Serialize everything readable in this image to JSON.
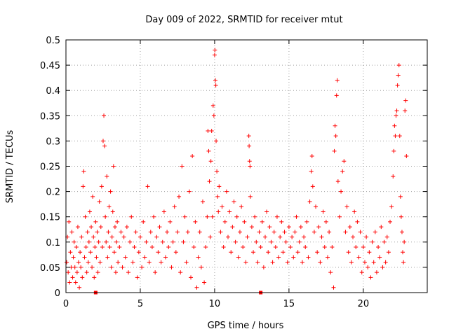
{
  "chart_data": {
    "type": "scatter",
    "title": "Day 009 of 2022, SRMTID for receiver mtut",
    "xlabel": "GPS time / hours",
    "ylabel": "SRMTID / TECUs",
    "xlim": [
      0,
      24.3
    ],
    "ylim": [
      0,
      0.5
    ],
    "xticks": [
      0,
      5,
      10,
      15,
      20
    ],
    "xtick_labels": [
      "0",
      "5",
      "10",
      "15",
      "20"
    ],
    "yticks": [
      0,
      0.05,
      0.1,
      0.15,
      0.2,
      0.25,
      0.3,
      0.35,
      0.4,
      0.45,
      0.5
    ],
    "ytick_labels": [
      "0",
      "0.05",
      "0.1",
      "0.15",
      "0.2",
      "0.25",
      "0.3",
      "0.35",
      "0.4",
      "0.45",
      "0.5"
    ],
    "grid": true,
    "marker": "plus",
    "color": "#ff0000",
    "series": [
      {
        "name": "SRMTID",
        "points": [
          [
            0.05,
            0.06
          ],
          [
            0.1,
            0.11
          ],
          [
            0.15,
            0.04
          ],
          [
            0.2,
            0.14
          ],
          [
            0.25,
            0.02
          ],
          [
            0.3,
            0.08
          ],
          [
            0.35,
            0.05
          ],
          [
            0.4,
            0.12
          ],
          [
            0.45,
            0.03
          ],
          [
            0.5,
            0.07
          ],
          [
            0.55,
            0.1
          ],
          [
            0.6,
            0.05
          ],
          [
            0.65,
            0.02
          ],
          [
            0.7,
            0.09
          ],
          [
            0.75,
            0.04
          ],
          [
            0.8,
            0.13
          ],
          [
            0.85,
            0.06
          ],
          [
            0.9,
            0.01
          ],
          [
            0.95,
            0.08
          ],
          [
            1.0,
            0.05
          ],
          [
            1.05,
            0.11
          ],
          [
            1.1,
            0.03
          ],
          [
            1.15,
            0.21
          ],
          [
            1.2,
            0.24
          ],
          [
            1.25,
            0.07
          ],
          [
            1.3,
            0.15
          ],
          [
            1.35,
            0.09
          ],
          [
            1.4,
            0.04
          ],
          [
            1.45,
            0.12
          ],
          [
            1.5,
            0.06
          ],
          [
            1.55,
            0.1
          ],
          [
            1.6,
            0.16
          ],
          [
            1.65,
            0.08
          ],
          [
            1.7,
            0.13
          ],
          [
            1.75,
            0.05
          ],
          [
            1.8,
            0.19
          ],
          [
            1.85,
            0.11
          ],
          [
            1.9,
            0.03
          ],
          [
            1.95,
            0.09
          ],
          [
            2.0,
            0.14
          ],
          [
            2.05,
            0.07
          ],
          [
            2.1,
            0.12
          ],
          [
            2.15,
            0.04
          ],
          [
            2.2,
            0.1
          ],
          [
            2.25,
            0.18
          ],
          [
            2.3,
            0.06
          ],
          [
            2.35,
            0.13
          ],
          [
            2.4,
            0.21
          ],
          [
            2.45,
            0.09
          ],
          [
            2.5,
            0.3
          ],
          [
            2.55,
            0.35
          ],
          [
            2.6,
            0.29
          ],
          [
            2.65,
            0.15
          ],
          [
            2.7,
            0.1
          ],
          [
            2.75,
            0.23
          ],
          [
            2.8,
            0.07
          ],
          [
            2.85,
            0.12
          ],
          [
            2.9,
            0.17
          ],
          [
            2.95,
            0.09
          ],
          [
            3.0,
            0.2
          ],
          [
            3.05,
            0.05
          ],
          [
            3.1,
            0.11
          ],
          [
            3.15,
            0.16
          ],
          [
            3.2,
            0.25
          ],
          [
            3.25,
            0.08
          ],
          [
            3.3,
            0.13
          ],
          [
            3.35,
            0.04
          ],
          [
            3.4,
            0.1
          ],
          [
            3.45,
            0.14
          ],
          [
            3.5,
            0.06
          ],
          [
            3.6,
            0.09
          ],
          [
            3.7,
            0.12
          ],
          [
            3.8,
            0.05
          ],
          [
            3.9,
            0.11
          ],
          [
            4.0,
            0.07
          ],
          [
            4.1,
            0.13
          ],
          [
            4.2,
            0.04
          ],
          [
            4.3,
            0.1
          ],
          [
            4.4,
            0.15
          ],
          [
            4.5,
            0.06
          ],
          [
            4.6,
            0.09
          ],
          [
            4.7,
            0.12
          ],
          [
            4.8,
            0.03
          ],
          [
            4.9,
            0.08
          ],
          [
            5.0,
            0.11
          ],
          [
            5.1,
            0.05
          ],
          [
            5.2,
            0.14
          ],
          [
            5.3,
            0.07
          ],
          [
            5.4,
            0.1
          ],
          [
            5.5,
            0.21
          ],
          [
            5.6,
            0.06
          ],
          [
            5.7,
            0.12
          ],
          [
            5.8,
            0.09
          ],
          [
            5.9,
            0.15
          ],
          [
            6.0,
            0.04
          ],
          [
            6.1,
            0.11
          ],
          [
            6.2,
            0.08
          ],
          [
            6.3,
            0.13
          ],
          [
            6.4,
            0.06
          ],
          [
            6.5,
            0.1
          ],
          [
            6.6,
            0.16
          ],
          [
            6.7,
            0.07
          ],
          [
            6.8,
            0.12
          ],
          [
            6.9,
            0.09
          ],
          [
            7.0,
            0.14
          ],
          [
            7.1,
            0.05
          ],
          [
            7.2,
            0.1
          ],
          [
            7.3,
            0.17
          ],
          [
            7.4,
            0.08
          ],
          [
            7.5,
            0.12
          ],
          [
            7.6,
            0.19
          ],
          [
            7.7,
            0.04
          ],
          [
            7.8,
            0.25
          ],
          [
            7.9,
            0.1
          ],
          [
            8.0,
            0.15
          ],
          [
            8.1,
            0.06
          ],
          [
            8.2,
            0.12
          ],
          [
            8.3,
            0.2
          ],
          [
            8.4,
            0.03
          ],
          [
            8.5,
            0.27
          ],
          [
            8.6,
            0.09
          ],
          [
            8.7,
            0.14
          ],
          [
            8.8,
            0.01
          ],
          [
            8.9,
            0.07
          ],
          [
            9.0,
            0.12
          ],
          [
            9.1,
            0.05
          ],
          [
            9.2,
            0.18
          ],
          [
            9.3,
            0.02
          ],
          [
            9.4,
            0.09
          ],
          [
            9.5,
            0.15
          ],
          [
            9.55,
            0.32
          ],
          [
            9.6,
            0.28
          ],
          [
            9.65,
            0.22
          ],
          [
            9.7,
            0.11
          ],
          [
            9.75,
            0.26
          ],
          [
            9.8,
            0.32
          ],
          [
            9.85,
            0.15
          ],
          [
            9.9,
            0.37
          ],
          [
            9.95,
            0.35
          ],
          [
            10.0,
            0.47
          ],
          [
            10.02,
            0.48
          ],
          [
            10.05,
            0.42
          ],
          [
            10.08,
            0.41
          ],
          [
            10.1,
            0.3
          ],
          [
            10.15,
            0.24
          ],
          [
            10.2,
            0.19
          ],
          [
            10.25,
            0.16
          ],
          [
            10.3,
            0.21
          ],
          [
            10.4,
            0.12
          ],
          [
            10.5,
            0.17
          ],
          [
            10.6,
            0.09
          ],
          [
            10.7,
            0.14
          ],
          [
            10.8,
            0.2
          ],
          [
            10.9,
            0.11
          ],
          [
            11.0,
            0.16
          ],
          [
            11.1,
            0.08
          ],
          [
            11.2,
            0.13
          ],
          [
            11.3,
            0.18
          ],
          [
            11.4,
            0.1
          ],
          [
            11.5,
            0.15
          ],
          [
            11.6,
            0.07
          ],
          [
            11.7,
            0.12
          ],
          [
            11.8,
            0.17
          ],
          [
            11.9,
            0.09
          ],
          [
            12.0,
            0.14
          ],
          [
            12.1,
            0.06
          ],
          [
            12.2,
            0.11
          ],
          [
            12.3,
            0.31
          ],
          [
            12.32,
            0.29
          ],
          [
            12.35,
            0.26
          ],
          [
            12.38,
            0.25
          ],
          [
            12.4,
            0.19
          ],
          [
            12.5,
            0.13
          ],
          [
            12.6,
            0.08
          ],
          [
            12.7,
            0.15
          ],
          [
            12.8,
            0.1
          ],
          [
            12.9,
            0.06
          ],
          [
            13.0,
            0.12
          ],
          [
            13.1,
            0.09
          ],
          [
            13.2,
            0.14
          ],
          [
            13.3,
            0.05
          ],
          [
            13.4,
            0.11
          ],
          [
            13.5,
            0.16
          ],
          [
            13.6,
            0.08
          ],
          [
            13.7,
            0.13
          ],
          [
            13.8,
            0.1
          ],
          [
            13.9,
            0.06
          ],
          [
            14.0,
            0.12
          ],
          [
            14.1,
            0.09
          ],
          [
            14.2,
            0.15
          ],
          [
            14.3,
            0.07
          ],
          [
            14.4,
            0.11
          ],
          [
            14.5,
            0.14
          ],
          [
            14.6,
            0.08
          ],
          [
            14.7,
            0.12
          ],
          [
            14.8,
            0.1
          ],
          [
            14.9,
            0.06
          ],
          [
            15.0,
            0.13
          ],
          [
            15.1,
            0.09
          ],
          [
            15.2,
            0.11
          ],
          [
            15.3,
            0.07
          ],
          [
            15.4,
            0.12
          ],
          [
            15.5,
            0.15
          ],
          [
            15.6,
            0.08
          ],
          [
            15.7,
            0.1
          ],
          [
            15.8,
            0.13
          ],
          [
            15.9,
            0.06
          ],
          [
            16.0,
            0.11
          ],
          [
            16.1,
            0.09
          ],
          [
            16.2,
            0.14
          ],
          [
            16.3,
            0.07
          ],
          [
            16.4,
            0.18
          ],
          [
            16.5,
            0.24
          ],
          [
            16.55,
            0.27
          ],
          [
            16.6,
            0.21
          ],
          [
            16.7,
            0.12
          ],
          [
            16.8,
            0.17
          ],
          [
            16.9,
            0.08
          ],
          [
            17.0,
            0.13
          ],
          [
            17.1,
            0.06
          ],
          [
            17.2,
            0.11
          ],
          [
            17.3,
            0.16
          ],
          [
            17.4,
            0.09
          ],
          [
            17.5,
            0.14
          ],
          [
            17.6,
            0.07
          ],
          [
            17.7,
            0.12
          ],
          [
            17.8,
            0.04
          ],
          [
            17.9,
            0.09
          ],
          [
            18.0,
            0.01
          ],
          [
            18.05,
            0.28
          ],
          [
            18.1,
            0.33
          ],
          [
            18.15,
            0.31
          ],
          [
            18.2,
            0.39
          ],
          [
            18.25,
            0.42
          ],
          [
            18.3,
            0.22
          ],
          [
            18.4,
            0.15
          ],
          [
            18.5,
            0.2
          ],
          [
            18.6,
            0.24
          ],
          [
            18.7,
            0.26
          ],
          [
            18.8,
            0.12
          ],
          [
            18.9,
            0.17
          ],
          [
            19.0,
            0.08
          ],
          [
            19.1,
            0.13
          ],
          [
            19.2,
            0.06
          ],
          [
            19.3,
            0.11
          ],
          [
            19.4,
            0.16
          ],
          [
            19.5,
            0.09
          ],
          [
            19.6,
            0.14
          ],
          [
            19.7,
            0.07
          ],
          [
            19.8,
            0.12
          ],
          [
            19.9,
            0.04
          ],
          [
            20.0,
            0.09
          ],
          [
            20.1,
            0.06
          ],
          [
            20.2,
            0.11
          ],
          [
            20.3,
            0.05
          ],
          [
            20.4,
            0.08
          ],
          [
            20.5,
            0.03
          ],
          [
            20.6,
            0.1
          ],
          [
            20.7,
            0.06
          ],
          [
            20.8,
            0.12
          ],
          [
            20.9,
            0.04
          ],
          [
            21.0,
            0.09
          ],
          [
            21.1,
            0.07
          ],
          [
            21.2,
            0.13
          ],
          [
            21.3,
            0.05
          ],
          [
            21.4,
            0.1
          ],
          [
            21.5,
            0.06
          ],
          [
            21.6,
            0.11
          ],
          [
            21.7,
            0.08
          ],
          [
            21.8,
            0.14
          ],
          [
            21.9,
            0.17
          ],
          [
            22.0,
            0.23
          ],
          [
            22.05,
            0.28
          ],
          [
            22.1,
            0.33
          ],
          [
            22.15,
            0.31
          ],
          [
            22.2,
            0.35
          ],
          [
            22.25,
            0.36
          ],
          [
            22.3,
            0.41
          ],
          [
            22.35,
            0.43
          ],
          [
            22.4,
            0.45
          ],
          [
            22.45,
            0.31
          ],
          [
            22.5,
            0.19
          ],
          [
            22.55,
            0.15
          ],
          [
            22.6,
            0.12
          ],
          [
            22.65,
            0.08
          ],
          [
            22.7,
            0.06
          ],
          [
            22.75,
            0.1
          ],
          [
            22.8,
            0.36
          ],
          [
            22.85,
            0.38
          ],
          [
            22.9,
            0.27
          ]
        ]
      }
    ],
    "zero_markers": [
      2.0,
      13.1
    ]
  }
}
